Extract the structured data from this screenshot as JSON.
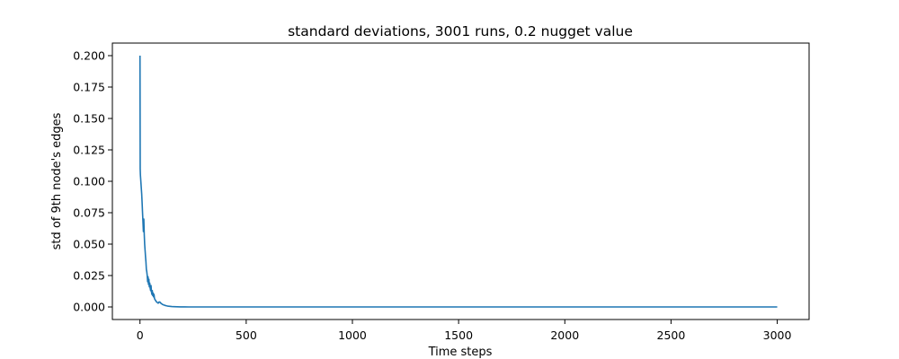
{
  "chart_data": {
    "type": "line",
    "title": "standard deviations, 3001 runs, 0.2 nugget value",
    "xlabel": "Time steps",
    "ylabel": "std of 9th node's edges",
    "xlim": [
      -130,
      3150
    ],
    "ylim": [
      -0.01,
      0.21
    ],
    "xticks": [
      0,
      500,
      1000,
      1500,
      2000,
      2500,
      3000
    ],
    "xtick_labels": [
      "0",
      "500",
      "1000",
      "1500",
      "2000",
      "2500",
      "3000"
    ],
    "yticks": [
      0.0,
      0.025,
      0.05,
      0.075,
      0.1,
      0.125,
      0.15,
      0.175,
      0.2
    ],
    "ytick_labels": [
      "0.000",
      "0.025",
      "0.050",
      "0.075",
      "0.100",
      "0.125",
      "0.150",
      "0.175",
      "0.200"
    ],
    "grid": false,
    "series": [
      {
        "color": "#1f77b4",
        "x": [
          0,
          1,
          2,
          4,
          6,
          8,
          10,
          12,
          14,
          16,
          18,
          20,
          22,
          24,
          26,
          28,
          30,
          32,
          34,
          36,
          38,
          40,
          42,
          44,
          46,
          48,
          50,
          52,
          54,
          56,
          58,
          60,
          62,
          64,
          66,
          68,
          70,
          74,
          78,
          82,
          86,
          90,
          94,
          98,
          102,
          106,
          110,
          115,
          120,
          125,
          130,
          140,
          150,
          160,
          175,
          190,
          210,
          230,
          260,
          300,
          400,
          600,
          1000,
          1500,
          2000,
          2500,
          3000
        ],
        "y": [
          0.2,
          0.11,
          0.105,
          0.1,
          0.095,
          0.09,
          0.083,
          0.075,
          0.068,
          0.06,
          0.07,
          0.058,
          0.05,
          0.045,
          0.04,
          0.036,
          0.03,
          0.028,
          0.025,
          0.02,
          0.024,
          0.018,
          0.022,
          0.016,
          0.019,
          0.015,
          0.013,
          0.017,
          0.012,
          0.01,
          0.013,
          0.009,
          0.011,
          0.008,
          0.01,
          0.007,
          0.006,
          0.005,
          0.004,
          0.0035,
          0.003,
          0.004,
          0.0038,
          0.003,
          0.0025,
          0.002,
          0.0017,
          0.0014,
          0.0011,
          0.0009,
          0.0007,
          0.0005,
          0.0003,
          0.0002,
          0.0001,
          5e-05,
          2e-05,
          0.0,
          0.0,
          0.0,
          0.0,
          0.0,
          0.0,
          0.0,
          0.0,
          0.0,
          0.0
        ]
      }
    ]
  }
}
